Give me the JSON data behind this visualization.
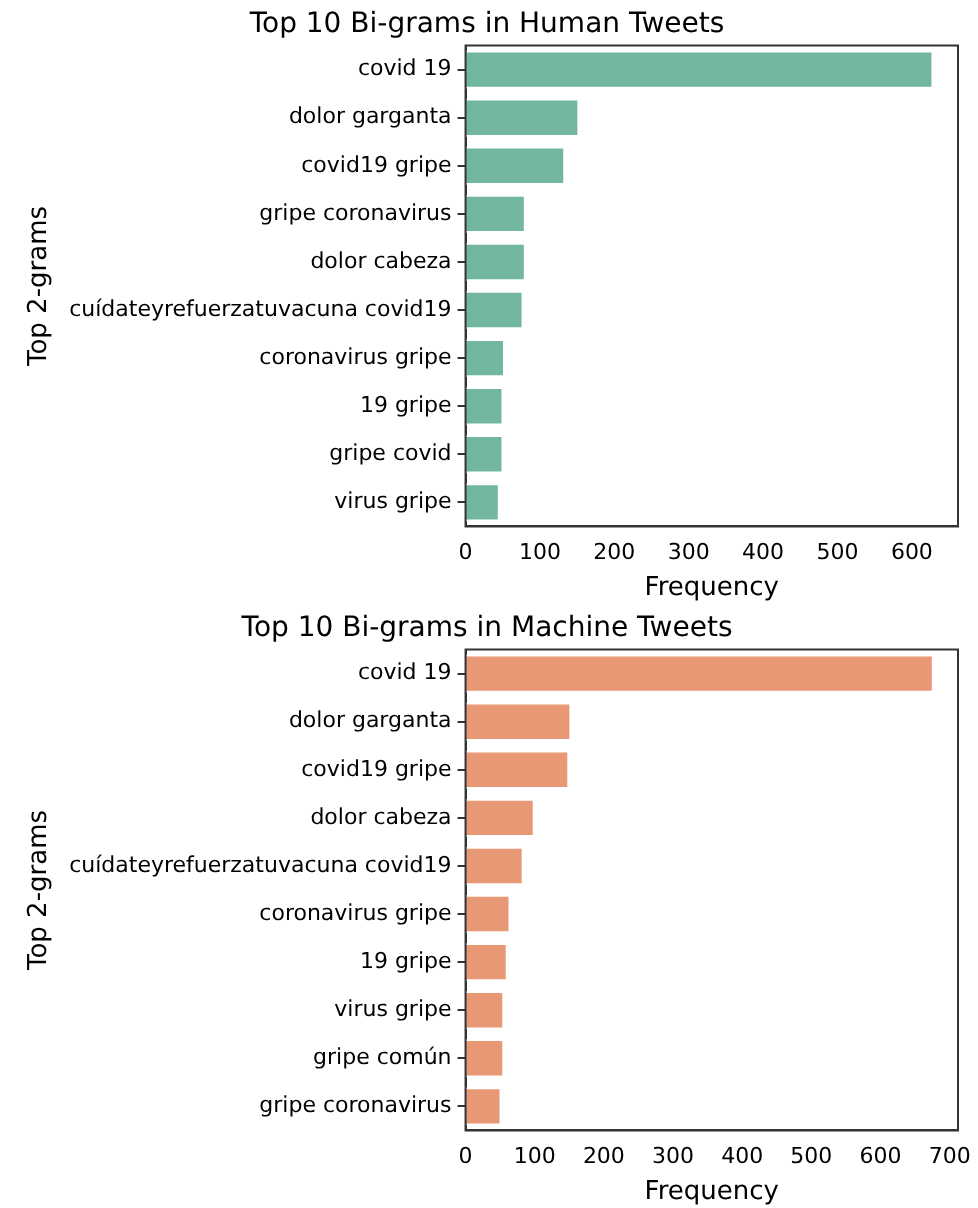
{
  "chart_data": [
    {
      "type": "bar",
      "orientation": "horizontal",
      "title": "Top 10 Bi-grams in Human Tweets",
      "xlabel": "Frequency",
      "ylabel": "Top 2-grams",
      "categories": [
        "covid 19",
        "dolor garganta",
        "covid19 gripe",
        "gripe coronavirus",
        "dolor cabeza",
        "cuídateyrefuerzatuvacuna covid19",
        "coronavirus gripe",
        "19 gripe",
        "gripe covid",
        "virus gripe"
      ],
      "values": [
        629,
        153,
        134,
        81,
        81,
        78,
        53,
        51,
        51,
        46
      ],
      "color": "#72b6a1",
      "xlim": [
        0,
        662
      ],
      "xticks": [
        0,
        100,
        200,
        300,
        400,
        500,
        600
      ],
      "grid": false,
      "legend": false
    },
    {
      "type": "bar",
      "orientation": "horizontal",
      "title": "Top 10 Bi-grams in Machine Tweets",
      "xlabel": "Frequency",
      "ylabel": "Top 2-grams",
      "categories": [
        "covid 19",
        "dolor garganta",
        "covid19 gripe",
        "dolor cabeza",
        "cuídateyrefuerzatuvacuna covid19",
        "coronavirus gripe",
        "19 gripe",
        "virus gripe",
        "gripe común",
        "gripe coronavirus"
      ],
      "values": [
        677,
        153,
        150,
        100,
        84,
        65,
        61,
        56,
        56,
        52
      ],
      "color": "#e99875",
      "xlim": [
        0,
        712
      ],
      "xticks": [
        0,
        100,
        200,
        300,
        400,
        500,
        600,
        700
      ],
      "grid": false,
      "legend": false
    }
  ]
}
